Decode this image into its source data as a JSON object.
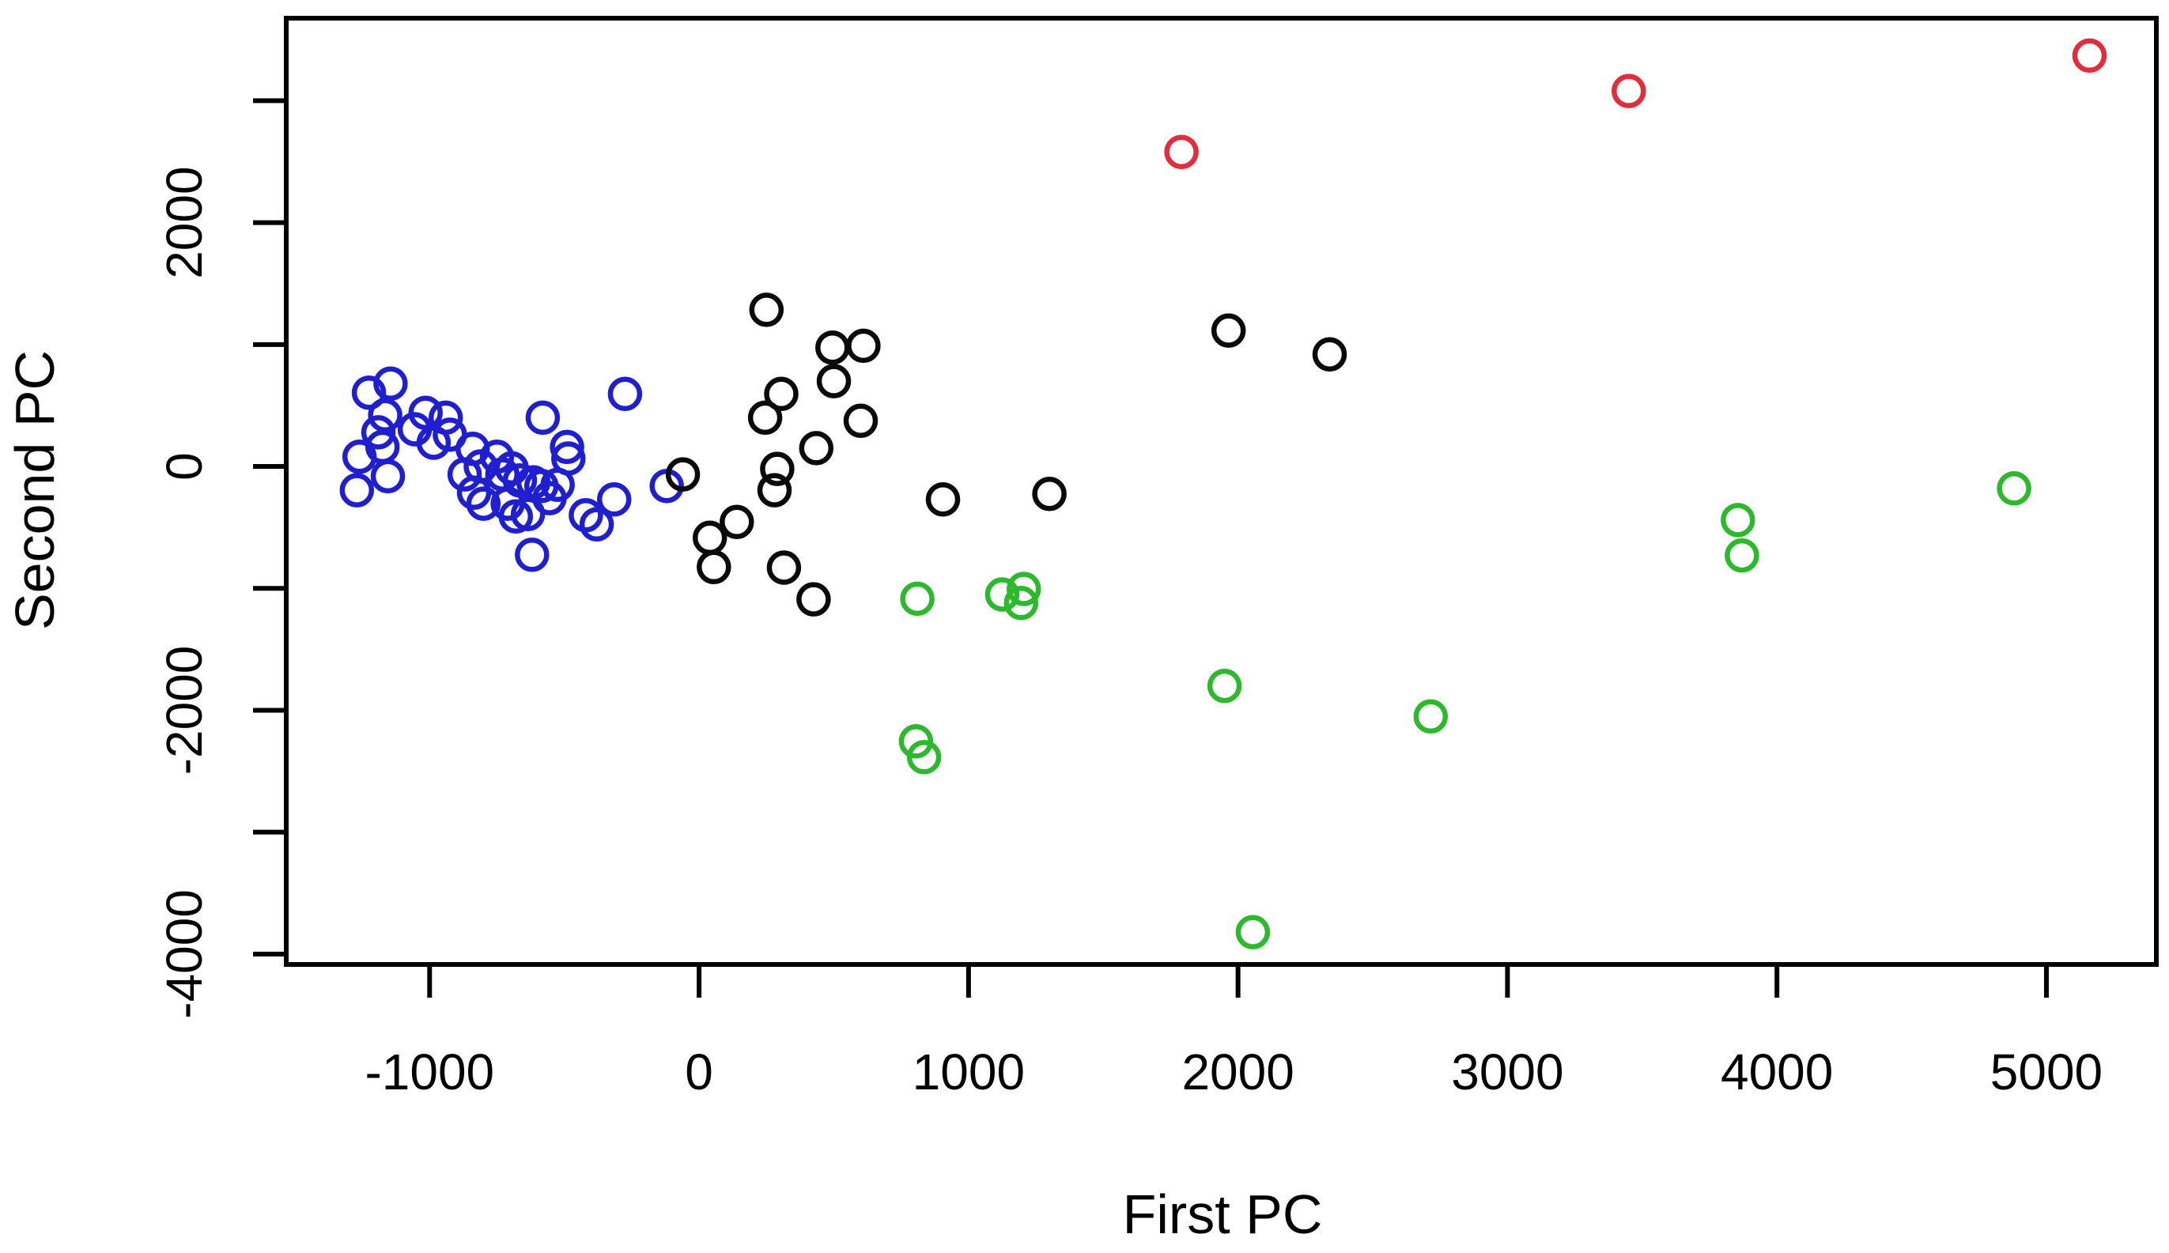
{
  "chart_data": {
    "type": "scatter",
    "title": "",
    "xlabel": "First PC",
    "ylabel": "Second PC",
    "xlim": [
      -1532,
      5408
    ],
    "ylim": [
      -4085,
      3677
    ],
    "x_ticks": [
      -1000,
      0,
      1000,
      2000,
      3000,
      4000,
      5000
    ],
    "x_tick_labels": [
      "-1000",
      "0",
      "1000",
      "2000",
      "3000",
      "4000",
      "5000"
    ],
    "y_ticks": [
      -4000,
      -3000,
      -2000,
      -1000,
      0,
      1000,
      2000,
      3000
    ],
    "y_labeled_ticks": [
      -4000,
      -2000,
      0,
      2000
    ],
    "y_tick_labels": [
      "-4000",
      "-2000",
      "0",
      "2000"
    ],
    "grid": false,
    "legend_position": "none",
    "marker": "open-circle",
    "marker_radius_px": 18.5,
    "series": [
      {
        "name": "blue-cluster",
        "color": "#1f1fd0",
        "points": [
          [
            -1225,
            605
          ],
          [
            -1145,
            680
          ],
          [
            -1165,
            420
          ],
          [
            -1190,
            280
          ],
          [
            -1175,
            160
          ],
          [
            -1260,
            80
          ],
          [
            -1155,
            -80
          ],
          [
            -1270,
            -195
          ],
          [
            -1015,
            440
          ],
          [
            -940,
            400
          ],
          [
            -1055,
            305
          ],
          [
            -985,
            195
          ],
          [
            -925,
            260
          ],
          [
            -840,
            145
          ],
          [
            -810,
            0
          ],
          [
            -870,
            -65
          ],
          [
            -750,
            80
          ],
          [
            -730,
            -65
          ],
          [
            -695,
            -15
          ],
          [
            -665,
            -115
          ],
          [
            -615,
            -130
          ],
          [
            -835,
            -215
          ],
          [
            -800,
            -305
          ],
          [
            -710,
            -305
          ],
          [
            -680,
            -410
          ],
          [
            -635,
            -390
          ],
          [
            -585,
            -160
          ],
          [
            -555,
            -260
          ],
          [
            -525,
            -150
          ],
          [
            -580,
            400
          ],
          [
            -490,
            160
          ],
          [
            -485,
            65
          ],
          [
            -420,
            -400
          ],
          [
            -275,
            595
          ],
          [
            -315,
            -270
          ],
          [
            -380,
            -475
          ],
          [
            -620,
            -725
          ],
          [
            -120,
            -160
          ]
        ]
      },
      {
        "name": "black-cluster",
        "color": "#0a0a0a",
        "points": [
          [
            250,
            1285
          ],
          [
            495,
            975
          ],
          [
            610,
            990
          ],
          [
            500,
            700
          ],
          [
            305,
            595
          ],
          [
            245,
            400
          ],
          [
            600,
            375
          ],
          [
            435,
            150
          ],
          [
            290,
            -20
          ],
          [
            280,
            -195
          ],
          [
            -60,
            -65
          ],
          [
            140,
            -455
          ],
          [
            40,
            -585
          ],
          [
            55,
            -825
          ],
          [
            315,
            -830
          ],
          [
            425,
            -1090
          ],
          [
            905,
            -270
          ],
          [
            1300,
            -225
          ],
          [
            1965,
            1115
          ],
          [
            2340,
            920
          ]
        ]
      },
      {
        "name": "green-cluster",
        "color": "#2eb82e",
        "points": [
          [
            810,
            -1085
          ],
          [
            1125,
            -1050
          ],
          [
            1205,
            -1005
          ],
          [
            1195,
            -1120
          ],
          [
            805,
            -2255
          ],
          [
            835,
            -2385
          ],
          [
            1950,
            -1800
          ],
          [
            2055,
            -3820
          ],
          [
            2715,
            -2050
          ],
          [
            3855,
            -440
          ],
          [
            3870,
            -730
          ],
          [
            4880,
            -180
          ]
        ]
      },
      {
        "name": "red-cluster",
        "color": "#e02e3c",
        "points": [
          [
            1790,
            2580
          ],
          [
            3450,
            3080
          ],
          [
            5160,
            3370
          ]
        ]
      }
    ]
  }
}
